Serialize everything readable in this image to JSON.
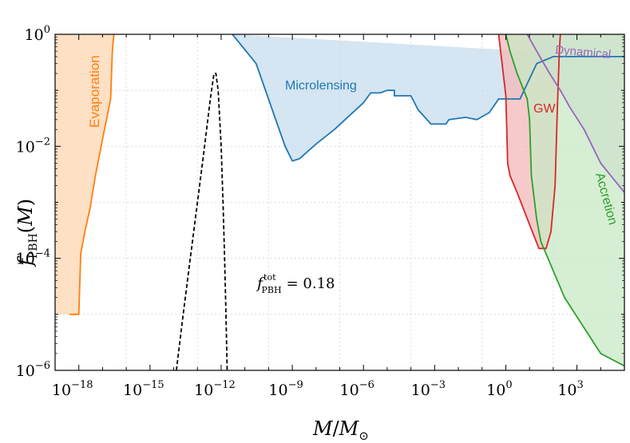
{
  "chart_data": {
    "type": "area",
    "title": "",
    "xlabel": "M/M_⊙",
    "ylabel": "f_PBH(M)",
    "xscale": "log",
    "yscale": "log",
    "xlim": [
      1e-19,
      100000.0
    ],
    "ylim": [
      1e-06,
      1
    ],
    "grid": true,
    "x_ticks": [
      {
        "base": "10",
        "exp": "−18",
        "value": 1e-18
      },
      {
        "base": "10",
        "exp": "−15",
        "value": 1e-15
      },
      {
        "base": "10",
        "exp": "−12",
        "value": 1e-12
      },
      {
        "base": "10",
        "exp": "−9",
        "value": 1e-09
      },
      {
        "base": "10",
        "exp": "−6",
        "value": 1e-06
      },
      {
        "base": "10",
        "exp": "−3",
        "value": 0.001
      },
      {
        "base": "10",
        "exp": "0",
        "value": 1
      },
      {
        "base": "10",
        "exp": "3",
        "value": 1000.0
      }
    ],
    "y_ticks": [
      {
        "base": "10",
        "exp": "0",
        "value": 1
      },
      {
        "base": "10",
        "exp": "−2",
        "value": 0.01
      },
      {
        "base": "10",
        "exp": "−4",
        "value": 0.0001
      },
      {
        "base": "10",
        "exp": "−6",
        "value": 1e-06
      }
    ],
    "series": [
      {
        "name": "Evaporation",
        "color": "#ff7f0e",
        "fill": "#fdd5b0",
        "points": [
          [
            4e-19,
            1e-05
          ],
          [
            1e-18,
            1e-05
          ],
          [
            1.2e-18,
            0.00012
          ],
          [
            1.8e-18,
            0.0003
          ],
          [
            3e-18,
            0.0008
          ],
          [
            5e-18,
            0.003
          ],
          [
            1.2e-17,
            0.02
          ],
          [
            2.2e-17,
            0.07
          ],
          [
            2.4e-17,
            0.2
          ],
          [
            2.6e-17,
            0.5
          ],
          [
            3e-17,
            1
          ]
        ]
      },
      {
        "name": "Microlensing",
        "color": "#1f77b4",
        "fill": "#c7dcec",
        "points": [
          [
            3e-12,
            1
          ],
          [
            3e-11,
            0.3
          ],
          [
            2e-10,
            0.03
          ],
          [
            5e-10,
            0.01
          ],
          [
            1e-09,
            0.0055
          ],
          [
            2e-09,
            0.006
          ],
          [
            1e-08,
            0.011
          ],
          [
            6e-08,
            0.02
          ],
          [
            1e-06,
            0.06
          ],
          [
            2e-06,
            0.09
          ],
          [
            5e-06,
            0.09
          ],
          [
            1e-05,
            0.1
          ],
          [
            2e-05,
            0.1
          ],
          [
            2e-05,
            0.08
          ],
          [
            0.0001,
            0.08
          ],
          [
            0.0002,
            0.045
          ],
          [
            0.0007,
            0.025
          ],
          [
            0.003,
            0.025
          ],
          [
            0.004,
            0.03
          ],
          [
            0.02,
            0.033
          ],
          [
            0.06,
            0.03
          ],
          [
            0.2,
            0.04
          ],
          [
            0.5,
            0.07
          ],
          [
            1,
            0.07
          ],
          [
            4,
            0.07
          ],
          [
            20,
            0.3
          ],
          [
            100,
            0.4
          ],
          [
            10000.0,
            0.4
          ],
          [
            100000.0,
            0.4
          ]
        ]
      },
      {
        "name": "GW",
        "color": "#d62728",
        "fill": "#f3b8b8",
        "points": [
          [
            0.5,
            1
          ],
          [
            1,
            0.08
          ],
          [
            1.2,
            0.005
          ],
          [
            1.5,
            0.003
          ],
          [
            3,
            0.0015
          ],
          [
            10,
            0.0004
          ],
          [
            25,
            0.00015
          ],
          [
            50,
            0.00015
          ],
          [
            80,
            0.0003
          ],
          [
            120,
            0.002
          ],
          [
            150,
            0.05
          ],
          [
            180,
            0.5
          ],
          [
            200,
            1
          ]
        ]
      },
      {
        "name": "Dynamical",
        "color": "#9467bd",
        "fill": "#d9cce4",
        "points": [
          [
            8,
            1
          ],
          [
            20,
            0.5
          ],
          [
            70,
            0.2
          ],
          [
            200,
            0.1
          ],
          [
            500,
            0.05
          ],
          [
            2000,
            0.02
          ],
          [
            10000.0,
            0.005
          ],
          [
            100000.0,
            0.0015
          ]
        ]
      },
      {
        "name": "Accretion",
        "color": "#2ca02c",
        "fill": "#c8e8c4",
        "points": [
          [
            1,
            1
          ],
          [
            1.5,
            0.5
          ],
          [
            3,
            0.2
          ],
          [
            8,
            0.07
          ],
          [
            10,
            0.03
          ],
          [
            12,
            0.003
          ],
          [
            20,
            0.0005
          ],
          [
            30,
            0.0002
          ],
          [
            60,
            0.0001
          ],
          [
            300,
            2e-05
          ],
          [
            10000.0,
            2e-06
          ],
          [
            100000.0,
            1.2e-06
          ]
        ]
      }
    ],
    "peak_curve": {
      "style": "dashed",
      "color": "#000000",
      "points": [
        [
          1.3e-14,
          1e-06
        ],
        [
          2.5e-14,
          1e-05
        ],
        [
          5e-14,
          0.0001
        ],
        [
          1e-13,
          0.001
        ],
        [
          2e-13,
          0.01
        ],
        [
          3.5e-13,
          0.07
        ],
        [
          5e-13,
          0.2
        ],
        [
          6e-13,
          0.2
        ],
        [
          7.5e-13,
          0.1
        ],
        [
          1e-12,
          0.01
        ],
        [
          1.2e-12,
          0.001
        ],
        [
          1.4e-12,
          0.0001
        ],
        [
          1.6e-12,
          1e-05
        ],
        [
          1.8e-12,
          1e-06
        ]
      ]
    },
    "annotations": {
      "evaporation": "Evaporation",
      "microlensing": "Microlensing",
      "gw": "GW",
      "dynamical": "Dynamical",
      "accretion": "Accretion",
      "ftot_prefix": "f",
      "ftot_sup": "tot",
      "ftot_sub": "PBH",
      "ftot_value": "= 0.18"
    }
  }
}
